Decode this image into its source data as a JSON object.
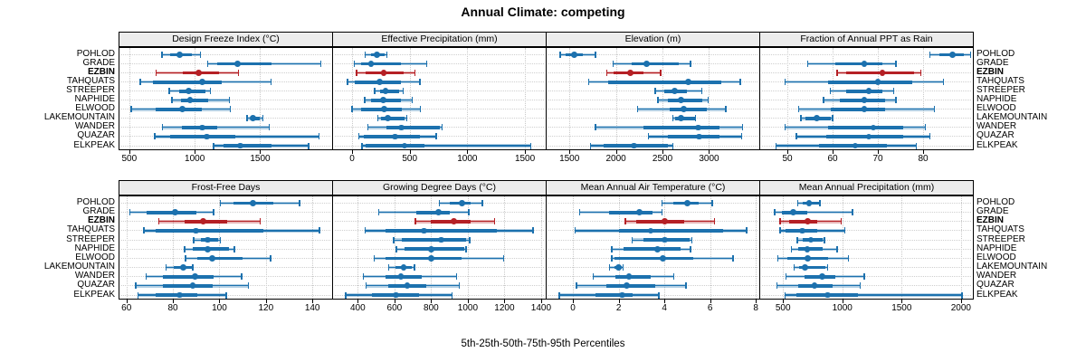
{
  "title": "Annual Climate: competing",
  "caption": "5th-25th-50th-75th-95th Percentiles",
  "highlight_site": "EZBIN",
  "colors": {
    "series": "#1c71ae",
    "highlight": "#b52025",
    "band_opacity": 0.33,
    "strip_bg": "#ececec",
    "grid": "#c9c9c9",
    "text": "#000000"
  },
  "chart_data": {
    "type": "dotplot-percentile-intervals",
    "percentile_labels": [
      "5th",
      "25th",
      "50th",
      "75th",
      "95th"
    ],
    "legend_position": "none",
    "grid": "dotted",
    "categories": [
      "POHLOD",
      "GRADE",
      "EZBIN",
      "TAHQUATS",
      "STREEPER",
      "NAPHIDE",
      "ELWOOD",
      "LAKEMOUNTAIN",
      "WANDER",
      "QUAZAR",
      "ELKPEAK"
    ],
    "panels": [
      {
        "title": "Design Freeze Index (°C)",
        "row": 0,
        "col": 0,
        "xlim": [
          425,
          2050
        ],
        "ticks": [
          500,
          1000,
          1500
        ],
        "tick_labels": [
          "500",
          "1000",
          "1500"
        ],
        "series": [
          [
            750,
            810,
            885,
            975,
            1045
          ],
          [
            1100,
            1170,
            1325,
            1590,
            1965
          ],
          [
            705,
            910,
            1030,
            1185,
            1335
          ],
          [
            585,
            680,
            1060,
            1205,
            1585
          ],
          [
            805,
            880,
            955,
            1080,
            1120
          ],
          [
            825,
            895,
            965,
            1100,
            1265
          ],
          [
            515,
            700,
            905,
            1055,
            1270
          ],
          [
            1400,
            1425,
            1445,
            1495,
            1520
          ],
          [
            755,
            905,
            1060,
            1170,
            1570
          ],
          [
            695,
            810,
            1090,
            1310,
            1950
          ],
          [
            1145,
            1220,
            1350,
            1590,
            1870
          ]
        ]
      },
      {
        "title": "Effective Precipitation (mm)",
        "row": 0,
        "col": 1,
        "xlim": [
          -165,
          1680
        ],
        "ticks": [
          0,
          500,
          1000,
          1500
        ],
        "tick_labels": [
          "0",
          "500",
          "1000",
          "1500"
        ],
        "series": [
          [
            115,
            165,
            215,
            280,
            300
          ],
          [
            20,
            75,
            165,
            420,
            650
          ],
          [
            40,
            115,
            275,
            450,
            545
          ],
          [
            -40,
            25,
            240,
            425,
            590
          ],
          [
            195,
            240,
            290,
            410,
            445
          ],
          [
            110,
            165,
            270,
            425,
            520
          ],
          [
            0,
            75,
            280,
            435,
            595
          ],
          [
            225,
            250,
            310,
            455,
            475
          ],
          [
            135,
            295,
            430,
            760,
            780
          ],
          [
            60,
            105,
            370,
            590,
            730
          ],
          [
            85,
            120,
            455,
            630,
            1550
          ]
        ]
      },
      {
        "title": "Elevation (m)",
        "row": 0,
        "col": 2,
        "xlim": [
          1255,
          3540
        ],
        "ticks": [
          1500,
          2000,
          2500,
          3000
        ],
        "tick_labels": [
          "1500",
          "2000",
          "2500",
          "3000"
        ],
        "series": [
          [
            1400,
            1455,
            1555,
            1645,
            1780
          ],
          [
            1970,
            2165,
            2330,
            2670,
            2800
          ],
          [
            1900,
            1975,
            2155,
            2295,
            2480
          ],
          [
            1710,
            1915,
            2780,
            3130,
            3335
          ],
          [
            2420,
            2515,
            2630,
            2765,
            2925
          ],
          [
            2450,
            2560,
            2700,
            2930,
            2990
          ],
          [
            2230,
            2575,
            2725,
            2975,
            3180
          ],
          [
            2610,
            2640,
            2700,
            2845,
            2855
          ],
          [
            1780,
            2300,
            2885,
            3115,
            3360
          ],
          [
            2350,
            2560,
            2895,
            3115,
            3350
          ],
          [
            1725,
            1865,
            2190,
            2560,
            2610
          ]
        ]
      },
      {
        "title": "Fraction of Annual PPT as Rain",
        "row": 0,
        "col": 3,
        "xlim": [
          44,
          91
        ],
        "ticks": [
          50,
          60,
          70,
          80
        ],
        "tick_labels": [
          "50",
          "60",
          "70",
          "80"
        ],
        "series": [
          [
            81.5,
            83.5,
            86.5,
            89,
            90.5
          ],
          [
            54.5,
            60.5,
            67,
            71,
            74
          ],
          [
            61,
            63,
            71,
            78,
            79.5
          ],
          [
            49.5,
            59,
            70,
            77.5,
            84.5
          ],
          [
            59.5,
            63,
            68,
            71,
            73.5
          ],
          [
            58,
            61.5,
            67,
            71.5,
            74
          ],
          [
            52.5,
            59.5,
            67,
            71.5,
            82.5
          ],
          [
            53,
            54,
            56.5,
            59.5,
            60
          ],
          [
            49.5,
            59,
            69,
            75.5,
            80.5
          ],
          [
            52,
            58.5,
            68,
            75.5,
            81.5
          ],
          [
            47.5,
            57,
            65,
            72,
            78.5
          ]
        ]
      },
      {
        "title": "Frost-Free Days",
        "row": 1,
        "col": 0,
        "xlim": [
          57,
          148.5
        ],
        "ticks": [
          60,
          80,
          100,
          120,
          140
        ],
        "tick_labels": [
          "60",
          "80",
          "100",
          "120",
          "140"
        ],
        "series": [
          [
            100.5,
            106,
            114.5,
            123,
            134.5
          ],
          [
            61.5,
            68.5,
            81,
            90,
            97.5
          ],
          [
            74,
            85,
            93,
            103.5,
            117.5
          ],
          [
            67.5,
            72.5,
            90,
            119,
            143
          ],
          [
            89,
            92,
            95,
            99.5,
            100.5
          ],
          [
            85,
            88.5,
            95,
            104,
            106.5
          ],
          [
            85.5,
            90.5,
            97,
            110,
            122
          ],
          [
            77,
            80.5,
            84.5,
            88,
            88.5
          ],
          [
            68.5,
            75.5,
            89.5,
            97.5,
            109.5
          ],
          [
            64,
            75.5,
            88.5,
            97,
            112.5
          ],
          [
            65,
            72.5,
            83,
            90.5,
            103
          ]
        ]
      },
      {
        "title": "Growing Degree Days (°C)",
        "row": 1,
        "col": 1,
        "xlim": [
          265,
          1425
        ],
        "ticks": [
          400,
          600,
          800,
          1000,
          1200,
          1400
        ],
        "tick_labels": [
          "400",
          "600",
          "800",
          "1000",
          "1200",
          "1400"
        ],
        "series": [
          [
            845,
            900,
            970,
            1015,
            1080
          ],
          [
            515,
            720,
            840,
            900,
            1005
          ],
          [
            715,
            800,
            925,
            1015,
            1145
          ],
          [
            440,
            550,
            760,
            1160,
            1355
          ],
          [
            595,
            640,
            855,
            990,
            1010
          ],
          [
            610,
            655,
            800,
            980,
            990
          ],
          [
            490,
            550,
            800,
            965,
            1195
          ],
          [
            570,
            605,
            650,
            695,
            710
          ],
          [
            430,
            550,
            635,
            750,
            940
          ],
          [
            445,
            565,
            670,
            775,
            955
          ],
          [
            335,
            475,
            610,
            735,
            915
          ]
        ]
      },
      {
        "title": "Mean Annual Air Temperature (°C)",
        "row": 1,
        "col": 2,
        "xlim": [
          -1.15,
          8.15
        ],
        "ticks": [
          0,
          2,
          4,
          6,
          8
        ],
        "tick_labels": [
          "0",
          "2",
          "4",
          "6",
          "8"
        ],
        "series": [
          [
            3.9,
            4.4,
            5.0,
            5.5,
            6.1
          ],
          [
            0.3,
            1.6,
            2.9,
            3.5,
            3.9
          ],
          [
            2.3,
            2.75,
            4.0,
            4.85,
            6.2
          ],
          [
            0.1,
            2.0,
            3.4,
            6.55,
            7.6
          ],
          [
            2.6,
            3.1,
            4.0,
            5.1,
            5.2
          ],
          [
            1.7,
            2.2,
            3.7,
            4.7,
            5.15
          ],
          [
            1.7,
            1.8,
            3.95,
            5.25,
            7.0
          ],
          [
            1.6,
            1.8,
            2.0,
            2.15,
            2.2
          ],
          [
            0.9,
            1.85,
            2.45,
            3.4,
            4.4
          ],
          [
            0.15,
            1.45,
            2.35,
            3.6,
            4.95
          ],
          [
            -0.6,
            1.0,
            2.15,
            2.6,
            3.75
          ]
        ]
      },
      {
        "title": "Mean Annual Precipitation (mm)",
        "row": 1,
        "col": 3,
        "xlim": [
          308,
          2100
        ],
        "ticks": [
          500,
          1000,
          1500,
          2000
        ],
        "tick_labels": [
          "500",
          "1000",
          "1500",
          "2000"
        ],
        "series": [
          [
            625,
            670,
            720,
            805,
            810
          ],
          [
            430,
            490,
            585,
            705,
            1085
          ],
          [
            475,
            550,
            710,
            790,
            990
          ],
          [
            475,
            520,
            660,
            790,
            1020
          ],
          [
            620,
            665,
            735,
            835,
            850
          ],
          [
            570,
            625,
            705,
            835,
            955
          ],
          [
            455,
            540,
            710,
            880,
            1050
          ],
          [
            595,
            635,
            685,
            860,
            875
          ],
          [
            525,
            685,
            830,
            940,
            1185
          ],
          [
            450,
            625,
            765,
            920,
            1150
          ],
          [
            520,
            615,
            875,
            1135,
            2010
          ]
        ]
      }
    ]
  }
}
